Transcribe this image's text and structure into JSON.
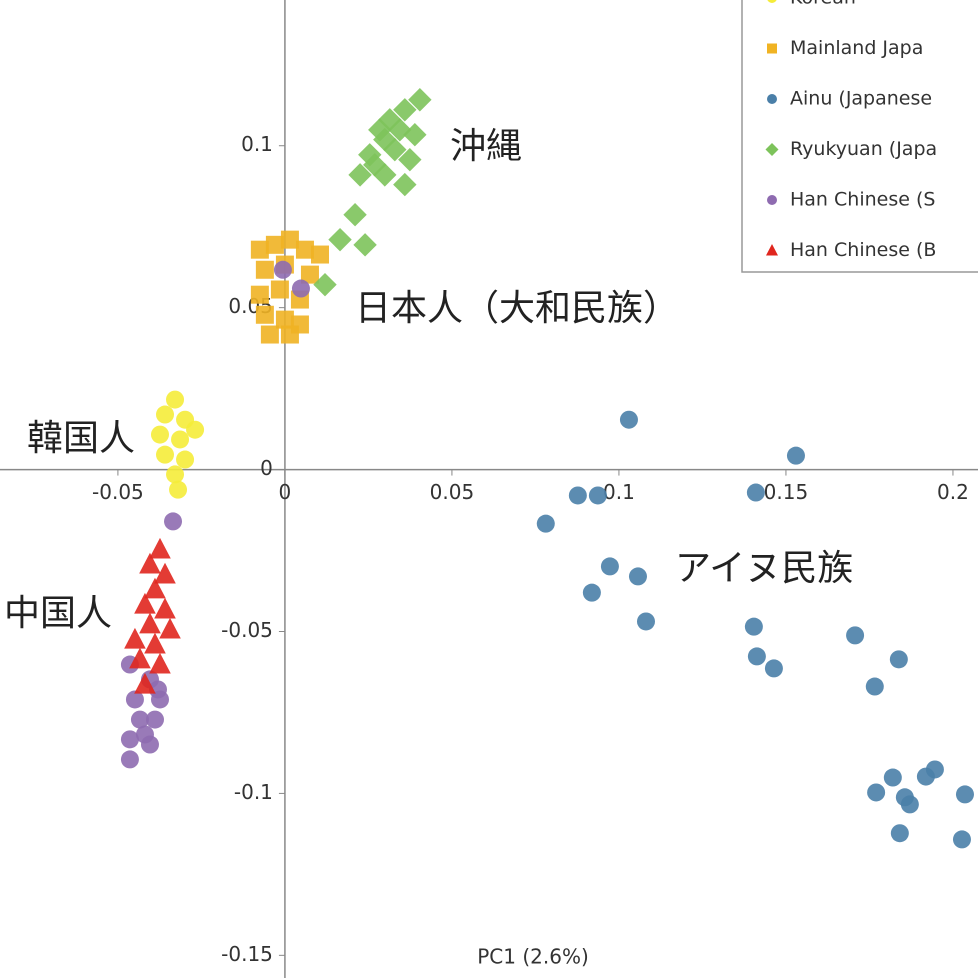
{
  "chart_data": {
    "type": "scatter",
    "x_label": "PC1 (2.6%)",
    "xlim": [
      -0.0853,
      0.2075
    ],
    "ylim": [
      -0.157,
      0.145
    ],
    "xticks": [
      -0.05,
      0,
      0.05,
      0.1,
      0.15,
      0.2
    ],
    "yticks": [
      -0.15,
      -0.1,
      -0.05,
      0,
      0.05,
      0.1
    ],
    "annotations": [
      "沖縄",
      "日本人（大和民族）",
      "韓国人",
      "中国人",
      "アイヌ民族"
    ],
    "series": [
      {
        "name": "Korean",
        "color": "#f5ec3a",
        "marker": "circle",
        "x": [
          -0.0329,
          -0.0359,
          -0.0299,
          -0.0374,
          -0.0314,
          -0.0269,
          -0.0359,
          -0.0299,
          -0.0329,
          -0.032
        ],
        "values": [
          0.0216,
          0.017,
          0.0154,
          0.0108,
          0.0093,
          0.0123,
          0.0046,
          0.0031,
          -0.0015,
          -0.0062
        ]
      },
      {
        "name": "Mainland Japa",
        "color": "#f0b323",
        "marker": "square",
        "x": [
          -0.0075,
          -0.003,
          0.0015,
          0.006,
          0.0105,
          -0.006,
          0,
          0.0075,
          -0.0075,
          -0.0015,
          0.0045,
          -0.006,
          0,
          0.0045,
          -0.0045,
          0.0015
        ],
        "values": [
          0.0679,
          0.0694,
          0.071,
          0.0679,
          0.0664,
          0.0617,
          0.0633,
          0.0602,
          0.054,
          0.0556,
          0.0525,
          0.0478,
          0.0463,
          0.0448,
          0.0417,
          0.0417
        ]
      },
      {
        "name": "Ainu (Japanese",
        "color": "#4a7fa8",
        "marker": "circle",
        "x": [
          0.103,
          0.153,
          0.0877,
          0.0937,
          0.141,
          0.0781,
          0.0973,
          0.1057,
          0.0919,
          0.1081,
          0.1404,
          0.1413,
          0.1464,
          0.1707,
          0.1838,
          0.1766,
          0.182,
          0.177,
          0.1856,
          0.1919,
          0.1946,
          0.2036,
          0.1841,
          0.2027,
          0.1871
        ],
        "values": [
          0.0154,
          0.0043,
          -0.008,
          -0.008,
          -0.0071,
          -0.0167,
          -0.0299,
          -0.033,
          -0.038,
          -0.0469,
          -0.0485,
          -0.0577,
          -0.0614,
          -0.0512,
          -0.0586,
          -0.067,
          -0.0951,
          -0.0997,
          -0.1012,
          -0.0948,
          -0.0926,
          -0.1003,
          -0.1123,
          -0.1142,
          -0.1034
        ]
      },
      {
        "name": "Ryukyuan (Japa",
        "color": "#7dc35b",
        "marker": "diamond",
        "x": [
          0.0404,
          0.0359,
          0.0314,
          0.0284,
          0.0344,
          0.0299,
          0.0254,
          0.0329,
          0.0374,
          0.0269,
          0.0225,
          0.0359,
          0.0299,
          0.021,
          0.0165,
          0.024,
          0.012,
          0.0389
        ],
        "values": [
          0.1142,
          0.1111,
          0.108,
          0.1049,
          0.1049,
          0.1019,
          0.0972,
          0.0988,
          0.0957,
          0.0941,
          0.091,
          0.088,
          0.091,
          0.0787,
          0.071,
          0.0694,
          0.0571,
          0.1034
        ]
      },
      {
        "name": "Han Chinese (S",
        "color": "#8e6bb0",
        "marker": "circle",
        "x": [
          -0.0335,
          -0.0006,
          0.0048,
          -0.0464,
          -0.0404,
          -0.0449,
          -0.0374,
          -0.0434,
          -0.0389,
          -0.0464,
          -0.0404,
          -0.0464,
          -0.0419,
          -0.038
        ],
        "values": [
          -0.016,
          0.0617,
          0.0559,
          -0.0602,
          -0.0648,
          -0.071,
          -0.071,
          -0.0772,
          -0.0772,
          -0.0833,
          -0.0849,
          -0.0895,
          -0.0818,
          -0.0679
        ]
      },
      {
        "name": "Han Chinese (B",
        "color": "#e0261e",
        "marker": "triangle",
        "x": [
          -0.0374,
          -0.0404,
          -0.0359,
          -0.0389,
          -0.0419,
          -0.0359,
          -0.0404,
          -0.0344,
          -0.0449,
          -0.0389,
          -0.0434,
          -0.0374,
          -0.0419
        ],
        "values": [
          -0.0247,
          -0.0293,
          -0.0324,
          -0.037,
          -0.0417,
          -0.0432,
          -0.0478,
          -0.0494,
          -0.0525,
          -0.054,
          -0.0586,
          -0.0602,
          -0.0664
        ]
      }
    ]
  }
}
